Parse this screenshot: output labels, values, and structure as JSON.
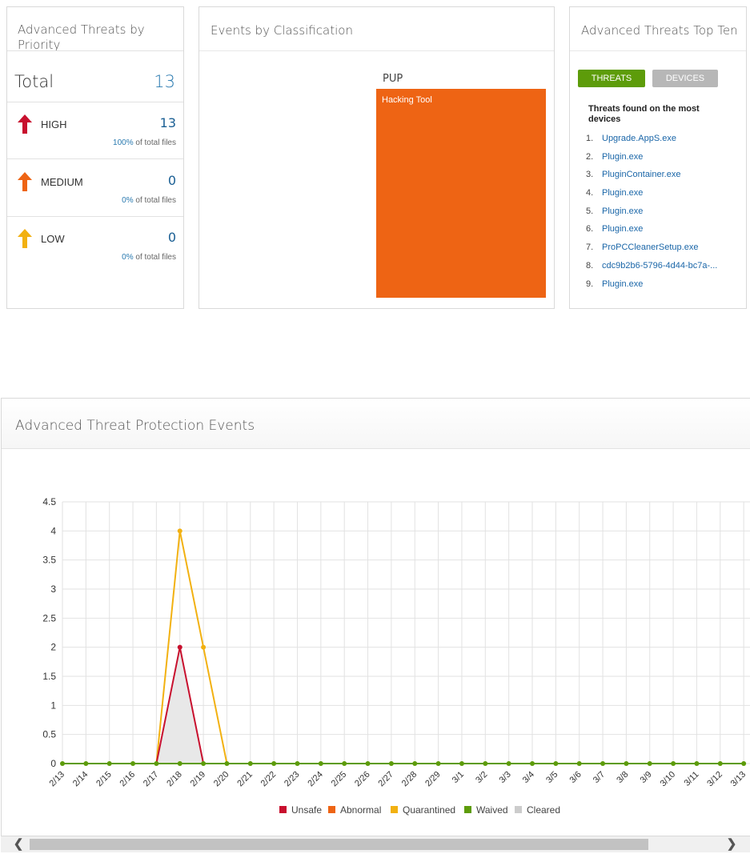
{
  "priority_panel": {
    "title": "Advanced Threats by Priority",
    "total_label": "Total",
    "total_value": "13",
    "rows": [
      {
        "label": "HIGH",
        "value": "13",
        "pct": "100%",
        "pct_suffix": "of total files",
        "color": "#c8102e"
      },
      {
        "label": "MEDIUM",
        "value": "0",
        "pct": "0%",
        "pct_suffix": "of total files",
        "color": "#ee6414"
      },
      {
        "label": "LOW",
        "value": "0",
        "pct": "0%",
        "pct_suffix": "of total files",
        "color": "#f2b111"
      }
    ]
  },
  "classification_panel": {
    "title": "Events by Classification",
    "group_label": "PUP",
    "box_label": "Hacking Tool",
    "box_color": "#ee6414"
  },
  "topten_panel": {
    "title": "Advanced Threats Top Ten",
    "buttons": {
      "threats": "THREATS",
      "devices": "DEVICES"
    },
    "subtitle": "Threats found on the most devices",
    "items": [
      {
        "num": "1.",
        "name": "Upgrade.AppS.exe"
      },
      {
        "num": "2.",
        "name": "Plugin.exe"
      },
      {
        "num": "3.",
        "name": "PluginContainer.exe"
      },
      {
        "num": "4.",
        "name": "Plugin.exe"
      },
      {
        "num": "5.",
        "name": "Plugin.exe"
      },
      {
        "num": "6.",
        "name": "Plugin.exe"
      },
      {
        "num": "7.",
        "name": "ProPCCleanerSetup.exe"
      },
      {
        "num": "8.",
        "name": "cdc9b2b6-5796-4d44-bc7a-..."
      },
      {
        "num": "9.",
        "name": "Plugin.exe"
      }
    ]
  },
  "events_panel": {
    "title": "Advanced Threat Protection Events"
  },
  "chart_data": {
    "type": "line",
    "categories": [
      "2/13",
      "2/14",
      "2/15",
      "2/16",
      "2/17",
      "2/18",
      "2/19",
      "2/20",
      "2/21",
      "2/22",
      "2/23",
      "2/24",
      "2/25",
      "2/26",
      "2/27",
      "2/28",
      "2/29",
      "3/1",
      "3/2",
      "3/3",
      "3/4",
      "3/5",
      "3/6",
      "3/7",
      "3/8",
      "3/9",
      "3/10",
      "3/11",
      "3/12",
      "3/13"
    ],
    "y_ticks": [
      "0",
      "0.5",
      "1",
      "1.5",
      "2",
      "2.5",
      "3",
      "3.5",
      "4",
      "4.5"
    ],
    "ylim": [
      0,
      4.5
    ],
    "grid": true,
    "legend_position": "bottom",
    "series": [
      {
        "name": "Unsafe",
        "color": "#c8102e",
        "values": [
          0,
          0,
          0,
          0,
          0,
          2,
          0,
          0,
          0,
          0,
          0,
          0,
          0,
          0,
          0,
          0,
          0,
          0,
          0,
          0,
          0,
          0,
          0,
          0,
          0,
          0,
          0,
          0,
          0,
          0
        ]
      },
      {
        "name": "Abnormal",
        "color": "#ee6414",
        "values": [
          0,
          0,
          0,
          0,
          0,
          0,
          0,
          0,
          0,
          0,
          0,
          0,
          0,
          0,
          0,
          0,
          0,
          0,
          0,
          0,
          0,
          0,
          0,
          0,
          0,
          0,
          0,
          0,
          0,
          0
        ]
      },
      {
        "name": "Quarantined",
        "color": "#f2b111",
        "values": [
          0,
          0,
          0,
          0,
          0,
          4,
          2,
          0,
          0,
          0,
          0,
          0,
          0,
          0,
          0,
          0,
          0,
          0,
          0,
          0,
          0,
          0,
          0,
          0,
          0,
          0,
          0,
          0,
          0,
          0
        ]
      },
      {
        "name": "Waived",
        "color": "#5d9c0a",
        "values": [
          0,
          0,
          0,
          0,
          0,
          0,
          0,
          0,
          0,
          0,
          0,
          0,
          0,
          0,
          0,
          0,
          0,
          0,
          0,
          0,
          0,
          0,
          0,
          0,
          0,
          0,
          0,
          0,
          0,
          0
        ]
      },
      {
        "name": "Cleared",
        "color": "#cccccc",
        "values": [
          0,
          0,
          0,
          0,
          0,
          0,
          0,
          0,
          0,
          0,
          0,
          0,
          0,
          0,
          0,
          0,
          0,
          0,
          0,
          0,
          0,
          0,
          0,
          0,
          0,
          0,
          0,
          0,
          0,
          0
        ]
      }
    ]
  },
  "scrollbar": {
    "left_icon": "chevron-left-icon",
    "right_icon": "chevron-right-icon"
  }
}
